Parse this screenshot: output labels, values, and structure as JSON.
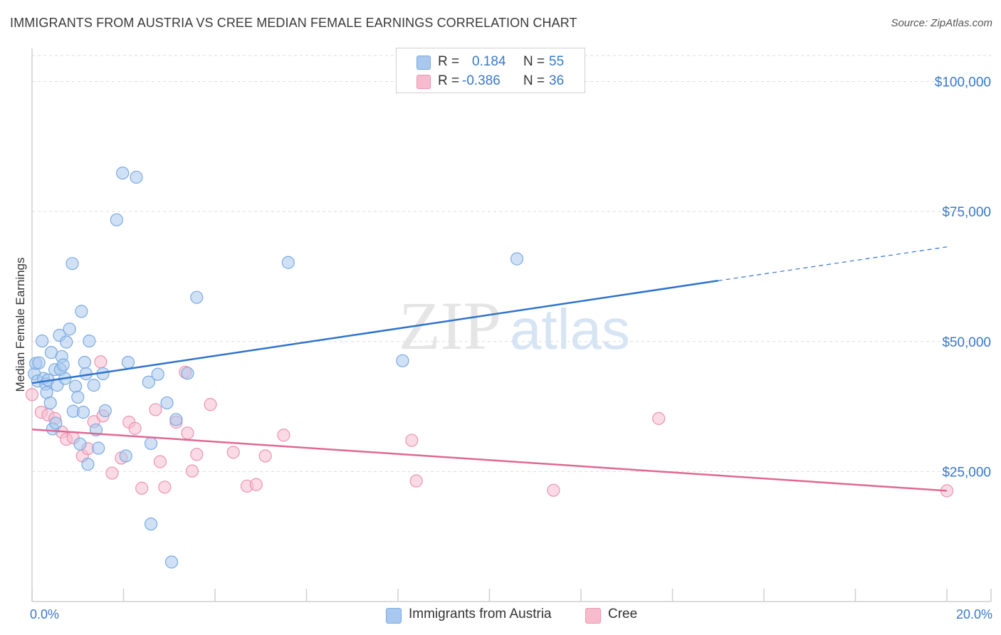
{
  "title": "IMMIGRANTS FROM AUSTRIA VS CREE MEDIAN FEMALE EARNINGS CORRELATION CHART",
  "source": "Source: ZipAtlas.com",
  "watermark": {
    "zip": "ZIP",
    "atlas": "atlas"
  },
  "legend": {
    "rows": [
      {
        "r_label": "R =",
        "r_value": "0.184",
        "n_label": "N =",
        "n_value": "55"
      },
      {
        "r_label": "R =",
        "r_value": "-0.386",
        "n_label": "N =",
        "n_value": "36"
      }
    ]
  },
  "bottom_legend": {
    "austria": "Immigrants from Austria",
    "cree": "Cree"
  },
  "colors": {
    "austria_fill": "#a9c8ef",
    "austria_stroke": "#7aaae0",
    "austria_line": "#2f73cc",
    "cree_fill": "#f6bccd",
    "cree_stroke": "#ec94b1",
    "cree_line": "#e06893",
    "axis_text": "#3a78c8",
    "grid": "#dcdcdc"
  },
  "chart_data": {
    "type": "scatter",
    "title": "IMMIGRANTS FROM AUSTRIA VS CREE MEDIAN FEMALE EARNINGS CORRELATION CHART",
    "xlabel": "",
    "ylabel": "Median Female Earnings",
    "xlim": [
      0,
      20
    ],
    "ylim": [
      0,
      105000
    ],
    "x_tick_labels": [
      "0.0%",
      "20.0%"
    ],
    "y_ticks": [
      {
        "value": 25000,
        "label": "$25,000"
      },
      {
        "value": 50000,
        "label": "$50,000"
      },
      {
        "value": 75000,
        "label": "$75,000"
      },
      {
        "value": 100000,
        "label": "$100,000"
      }
    ],
    "series": [
      {
        "name": "Immigrants from Austria",
        "r": 0.184,
        "n": 55,
        "trend": {
          "x0": 0,
          "y0": 42000,
          "x1": 15.0,
          "y1": 61700,
          "dash_x1": 20.0,
          "dash_y1": 68200
        },
        "points": [
          [
            0.05,
            43800
          ],
          [
            0.08,
            45800
          ],
          [
            0.12,
            42400
          ],
          [
            0.15,
            45900
          ],
          [
            0.22,
            50100
          ],
          [
            0.25,
            42900
          ],
          [
            0.3,
            41800
          ],
          [
            0.32,
            40200
          ],
          [
            0.35,
            42600
          ],
          [
            0.4,
            38200
          ],
          [
            0.42,
            47900
          ],
          [
            0.45,
            33200
          ],
          [
            0.5,
            44600
          ],
          [
            0.52,
            34300
          ],
          [
            0.55,
            41600
          ],
          [
            0.6,
            51200
          ],
          [
            0.62,
            44600
          ],
          [
            0.65,
            47100
          ],
          [
            0.68,
            45500
          ],
          [
            0.72,
            42900
          ],
          [
            0.75,
            49900
          ],
          [
            0.82,
            52400
          ],
          [
            0.88,
            65000
          ],
          [
            0.9,
            36600
          ],
          [
            0.95,
            41400
          ],
          [
            1.0,
            39300
          ],
          [
            1.05,
            30300
          ],
          [
            1.08,
            55800
          ],
          [
            1.12,
            36400
          ],
          [
            1.15,
            46000
          ],
          [
            1.18,
            43800
          ],
          [
            1.22,
            26400
          ],
          [
            1.25,
            50100
          ],
          [
            1.35,
            41600
          ],
          [
            1.4,
            33000
          ],
          [
            1.45,
            29500
          ],
          [
            1.55,
            43800
          ],
          [
            1.6,
            36700
          ],
          [
            1.85,
            73400
          ],
          [
            1.98,
            82400
          ],
          [
            2.05,
            28000
          ],
          [
            2.1,
            46000
          ],
          [
            2.28,
            81600
          ],
          [
            2.55,
            42200
          ],
          [
            2.6,
            30400
          ],
          [
            2.6,
            14900
          ],
          [
            2.75,
            43700
          ],
          [
            2.95,
            38200
          ],
          [
            3.05,
            7600
          ],
          [
            3.15,
            35000
          ],
          [
            3.4,
            43900
          ],
          [
            3.6,
            58500
          ],
          [
            5.6,
            65200
          ],
          [
            8.1,
            46300
          ],
          [
            10.6,
            65900
          ]
        ]
      },
      {
        "name": "Cree",
        "r": -0.386,
        "n": 36,
        "trend": {
          "x0": 0,
          "y0": 33100,
          "x1": 20.0,
          "y1": 21300
        },
        "points": [
          [
            0.0,
            39800
          ],
          [
            0.2,
            36400
          ],
          [
            0.35,
            35900
          ],
          [
            0.5,
            35200
          ],
          [
            0.65,
            32600
          ],
          [
            0.75,
            31200
          ],
          [
            0.9,
            31500
          ],
          [
            1.1,
            28000
          ],
          [
            1.22,
            29400
          ],
          [
            1.35,
            34600
          ],
          [
            1.55,
            35700
          ],
          [
            1.5,
            46100
          ],
          [
            1.75,
            24700
          ],
          [
            1.95,
            27600
          ],
          [
            2.12,
            34500
          ],
          [
            2.25,
            33300
          ],
          [
            2.4,
            21800
          ],
          [
            2.7,
            36900
          ],
          [
            2.8,
            26900
          ],
          [
            2.9,
            22000
          ],
          [
            3.15,
            34500
          ],
          [
            3.35,
            44100
          ],
          [
            3.4,
            32400
          ],
          [
            3.5,
            25100
          ],
          [
            3.6,
            28300
          ],
          [
            3.9,
            37900
          ],
          [
            4.4,
            28700
          ],
          [
            4.7,
            22200
          ],
          [
            4.9,
            22500
          ],
          [
            5.1,
            28000
          ],
          [
            5.5,
            32000
          ],
          [
            8.3,
            31000
          ],
          [
            8.4,
            23200
          ],
          [
            11.4,
            21400
          ],
          [
            13.7,
            35200
          ],
          [
            20.0,
            21300
          ]
        ]
      }
    ]
  }
}
